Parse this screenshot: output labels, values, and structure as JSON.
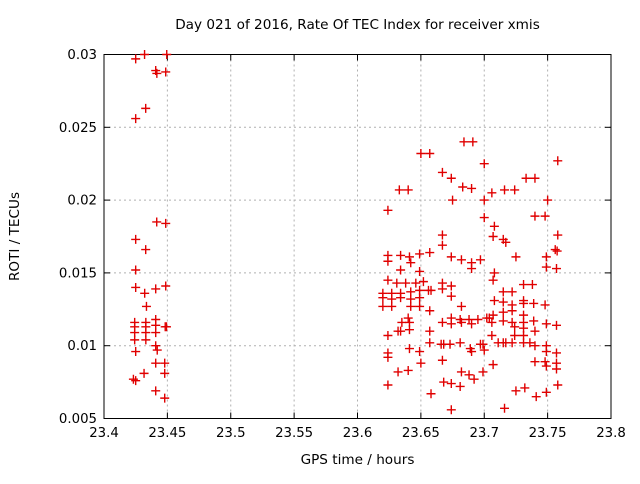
{
  "chart_data": {
    "type": "scatter",
    "title": "Day 021 of 2016, Rate Of TEC Index for receiver xmis",
    "xlabel": "GPS time / hours",
    "ylabel": "ROTI / TECUs",
    "xlim": [
      23.4,
      23.8
    ],
    "ylim": [
      0.005,
      0.03
    ],
    "grid": true,
    "legend_position": "none",
    "xticks": {
      "values": [
        23.4,
        23.45,
        23.5,
        23.55,
        23.6,
        23.65,
        23.7,
        23.75,
        23.8
      ],
      "labels": [
        "23.4",
        "23.45",
        "23.5",
        "23.55",
        "23.6",
        "23.65",
        "23.7",
        "23.75",
        "23.8"
      ]
    },
    "yticks": {
      "values": [
        0.005,
        0.01,
        0.015,
        0.02,
        0.025,
        0.03
      ],
      "labels": [
        "0.005",
        "0.01",
        "0.015",
        "0.02",
        "0.025",
        "0.03"
      ]
    },
    "colors": {
      "marker": "#e00000",
      "grid": "#b0b0b0",
      "axis": "#000000",
      "background": "#ffffff"
    },
    "marker": {
      "shape": "plus",
      "size": 9,
      "stroke_width": 1.4
    },
    "series": [
      {
        "name": "rate-of-tec-index",
        "points": [
          [
            23.425,
            0.0297
          ],
          [
            23.432,
            0.03
          ],
          [
            23.4495,
            0.03
          ],
          [
            23.4408,
            0.0289
          ],
          [
            23.4417,
            0.0287
          ],
          [
            23.4487,
            0.0288
          ],
          [
            23.4329,
            0.0263
          ],
          [
            23.425,
            0.0256
          ],
          [
            23.4416,
            0.0185
          ],
          [
            23.4487,
            0.0184
          ],
          [
            23.425,
            0.0173
          ],
          [
            23.4329,
            0.0166
          ],
          [
            23.425,
            0.0152
          ],
          [
            23.425,
            0.014
          ],
          [
            23.4321,
            0.0136
          ],
          [
            23.4408,
            0.0139
          ],
          [
            23.4487,
            0.0141
          ],
          [
            23.4335,
            0.0127
          ],
          [
            23.4242,
            0.0116
          ],
          [
            23.433,
            0.0116
          ],
          [
            23.4408,
            0.0118
          ],
          [
            23.4242,
            0.0113
          ],
          [
            23.433,
            0.0113
          ],
          [
            23.4408,
            0.0114
          ],
          [
            23.4483,
            0.0113
          ],
          [
            23.4493,
            0.0113
          ],
          [
            23.4242,
            0.0109
          ],
          [
            23.433,
            0.0109
          ],
          [
            23.4408,
            0.0109
          ],
          [
            23.4242,
            0.0104
          ],
          [
            23.433,
            0.0104
          ],
          [
            23.4408,
            0.01
          ],
          [
            23.425,
            0.0096
          ],
          [
            23.442,
            0.0097
          ],
          [
            23.4408,
            0.0088
          ],
          [
            23.4479,
            0.0088
          ],
          [
            23.4316,
            0.0081
          ],
          [
            23.4232,
            0.0077
          ],
          [
            23.425,
            0.0076
          ],
          [
            23.4479,
            0.0081
          ],
          [
            23.4408,
            0.0069
          ],
          [
            23.4479,
            0.0064
          ],
          [
            23.684,
            0.024
          ],
          [
            23.691,
            0.024
          ],
          [
            23.65,
            0.0232
          ],
          [
            23.657,
            0.0232
          ],
          [
            23.7,
            0.0225
          ],
          [
            23.667,
            0.0219
          ],
          [
            23.674,
            0.0215
          ],
          [
            23.683,
            0.0209
          ],
          [
            23.69,
            0.0208
          ],
          [
            23.633,
            0.0207
          ],
          [
            23.64,
            0.0207
          ],
          [
            23.706,
            0.0205
          ],
          [
            23.7,
            0.02
          ],
          [
            23.675,
            0.02
          ],
          [
            23.624,
            0.0193
          ],
          [
            23.7,
            0.0188
          ],
          [
            23.708,
            0.0182
          ],
          [
            23.758,
            0.0227
          ],
          [
            23.733,
            0.0215
          ],
          [
            23.74,
            0.0215
          ],
          [
            23.716,
            0.0207
          ],
          [
            23.724,
            0.0207
          ],
          [
            23.75,
            0.02
          ],
          [
            23.74,
            0.0189
          ],
          [
            23.748,
            0.0189
          ],
          [
            23.667,
            0.0176
          ],
          [
            23.667,
            0.0169
          ],
          [
            23.707,
            0.0175
          ],
          [
            23.715,
            0.0173
          ],
          [
            23.717,
            0.0171
          ],
          [
            23.758,
            0.0176
          ],
          [
            23.756,
            0.0166
          ],
          [
            23.7575,
            0.0165
          ],
          [
            23.624,
            0.0162
          ],
          [
            23.634,
            0.0162
          ],
          [
            23.641,
            0.0161
          ],
          [
            23.649,
            0.0163
          ],
          [
            23.657,
            0.0164
          ],
          [
            23.674,
            0.0161
          ],
          [
            23.682,
            0.0159
          ],
          [
            23.69,
            0.0157
          ],
          [
            23.697,
            0.0159
          ],
          [
            23.642,
            0.0157
          ],
          [
            23.624,
            0.0158
          ],
          [
            23.634,
            0.0152
          ],
          [
            23.69,
            0.0153
          ],
          [
            23.649,
            0.0151
          ],
          [
            23.725,
            0.0161
          ],
          [
            23.749,
            0.0161
          ],
          [
            23.749,
            0.0154
          ],
          [
            23.757,
            0.0153
          ],
          [
            23.708,
            0.015
          ],
          [
            23.624,
            0.0145
          ],
          [
            23.631,
            0.0143
          ],
          [
            23.638,
            0.0143
          ],
          [
            23.646,
            0.0143
          ],
          [
            23.652,
            0.0144
          ],
          [
            23.667,
            0.0143
          ],
          [
            23.674,
            0.0141
          ],
          [
            23.707,
            0.0145
          ],
          [
            23.731,
            0.0142
          ],
          [
            23.738,
            0.0142
          ],
          [
            23.62,
            0.0136
          ],
          [
            23.627,
            0.0136
          ],
          [
            23.634,
            0.0136
          ],
          [
            23.642,
            0.0137
          ],
          [
            23.649,
            0.0138
          ],
          [
            23.656,
            0.0138
          ],
          [
            23.658,
            0.0138
          ],
          [
            23.667,
            0.0139
          ],
          [
            23.715,
            0.0137
          ],
          [
            23.722,
            0.0137
          ],
          [
            23.62,
            0.0133
          ],
          [
            23.627,
            0.0132
          ],
          [
            23.634,
            0.0133
          ],
          [
            23.642,
            0.0132
          ],
          [
            23.649,
            0.0133
          ],
          [
            23.674,
            0.0134
          ],
          [
            23.731,
            0.0131
          ],
          [
            23.731,
            0.0129
          ],
          [
            23.708,
            0.0131
          ],
          [
            23.715,
            0.013
          ],
          [
            23.739,
            0.0129
          ],
          [
            23.722,
            0.0128
          ],
          [
            23.748,
            0.0128
          ],
          [
            23.682,
            0.0127
          ],
          [
            23.62,
            0.0127
          ],
          [
            23.627,
            0.0127
          ],
          [
            23.642,
            0.0127
          ],
          [
            23.649,
            0.0127
          ],
          [
            23.657,
            0.0124
          ],
          [
            23.64,
            0.0119
          ],
          [
            23.674,
            0.0119
          ],
          [
            23.681,
            0.0118
          ],
          [
            23.688,
            0.0118
          ],
          [
            23.695,
            0.0118
          ],
          [
            23.702,
            0.0119
          ],
          [
            23.704,
            0.0119
          ],
          [
            23.707,
            0.0121
          ],
          [
            23.715,
            0.0123
          ],
          [
            23.722,
            0.0124
          ],
          [
            23.731,
            0.0121
          ],
          [
            23.715,
            0.0117
          ],
          [
            23.722,
            0.0116
          ],
          [
            23.731,
            0.0116
          ],
          [
            23.739,
            0.0117
          ],
          [
            23.749,
            0.0115
          ],
          [
            23.757,
            0.0114
          ],
          [
            23.635,
            0.0116
          ],
          [
            23.641,
            0.0116
          ],
          [
            23.667,
            0.0116
          ],
          [
            23.674,
            0.0115
          ],
          [
            23.682,
            0.0116
          ],
          [
            23.69,
            0.0115
          ],
          [
            23.706,
            0.0116
          ],
          [
            23.632,
            0.011
          ],
          [
            23.634,
            0.011
          ],
          [
            23.641,
            0.0111
          ],
          [
            23.624,
            0.0107
          ],
          [
            23.657,
            0.011
          ],
          [
            23.706,
            0.0107
          ],
          [
            23.724,
            0.0113
          ],
          [
            23.731,
            0.0112
          ],
          [
            23.731,
            0.0107
          ],
          [
            23.724,
            0.0107
          ],
          [
            23.74,
            0.011
          ],
          [
            23.657,
            0.0102
          ],
          [
            23.641,
            0.0098
          ],
          [
            23.624,
            0.0095
          ],
          [
            23.624,
            0.0092
          ],
          [
            23.649,
            0.0096
          ],
          [
            23.666,
            0.0101
          ],
          [
            23.668,
            0.0101
          ],
          [
            23.673,
            0.0101
          ],
          [
            23.681,
            0.0102
          ],
          [
            23.689,
            0.0098
          ],
          [
            23.69,
            0.0096
          ],
          [
            23.697,
            0.0101
          ],
          [
            23.699,
            0.0101
          ],
          [
            23.7,
            0.0097
          ],
          [
            23.711,
            0.0102
          ],
          [
            23.715,
            0.0102
          ],
          [
            23.717,
            0.0102
          ],
          [
            23.722,
            0.0102
          ],
          [
            23.731,
            0.0102
          ],
          [
            23.736,
            0.0102
          ],
          [
            23.74,
            0.01
          ],
          [
            23.749,
            0.01
          ],
          [
            23.749,
            0.0096
          ],
          [
            23.757,
            0.0095
          ],
          [
            23.65,
            0.0088
          ],
          [
            23.667,
            0.009
          ],
          [
            23.74,
            0.0089
          ],
          [
            23.748,
            0.0089
          ],
          [
            23.749,
            0.0086
          ],
          [
            23.757,
            0.0088
          ],
          [
            23.757,
            0.0084
          ],
          [
            23.632,
            0.0082
          ],
          [
            23.64,
            0.0083
          ],
          [
            23.682,
            0.0082
          ],
          [
            23.688,
            0.008
          ],
          [
            23.699,
            0.0082
          ],
          [
            23.707,
            0.0087
          ],
          [
            23.624,
            0.0073
          ],
          [
            23.668,
            0.0075
          ],
          [
            23.674,
            0.0074
          ],
          [
            23.681,
            0.0072
          ],
          [
            23.692,
            0.0077
          ],
          [
            23.758,
            0.0073
          ],
          [
            23.725,
            0.0069
          ],
          [
            23.732,
            0.0071
          ],
          [
            23.741,
            0.0065
          ],
          [
            23.749,
            0.0068
          ],
          [
            23.658,
            0.0067
          ],
          [
            23.674,
            0.0056
          ],
          [
            23.716,
            0.0057
          ]
        ]
      }
    ]
  }
}
